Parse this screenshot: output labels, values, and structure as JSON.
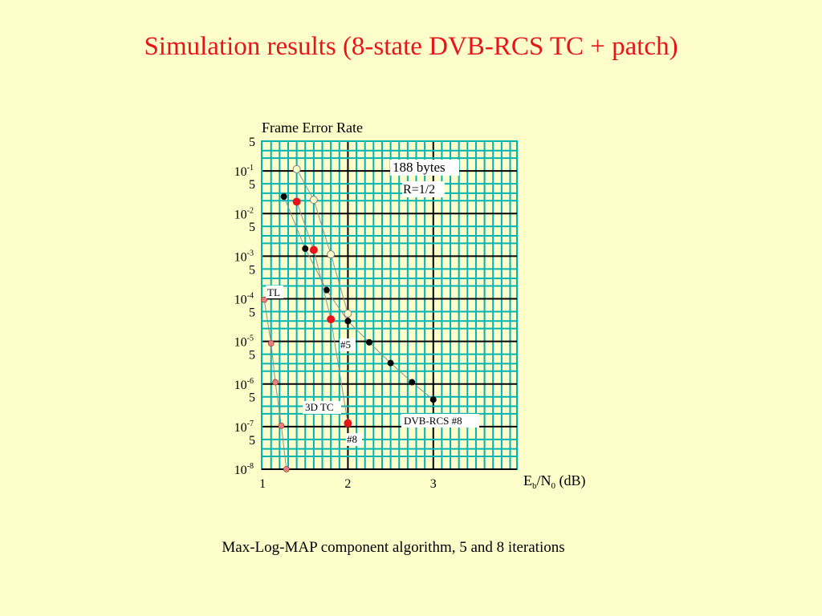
{
  "slide": {
    "title": "Simulation results (8-state DVB-RCS TC + patch)",
    "caption": "Max-Log-MAP component algorithm, 5 and 8 iterations"
  },
  "colors": {
    "background": "#fefecb",
    "title": "#e8141c",
    "grid": "#00b4b4",
    "grid_major": "#000000",
    "red_marker": "#e8141c",
    "pink_marker": "#e88080",
    "series_line": "#909090"
  },
  "chart_data": {
    "type": "scatter",
    "title": "",
    "ylabel": "Frame Error Rate",
    "xlabel_parts": {
      "E": "E",
      "b": "b",
      "slash": "/N",
      "zero": "0",
      "unit": " (dB)"
    },
    "xlim": [
      0.99,
      3.98
    ],
    "ylim": [
      1e-08,
      0.5
    ],
    "yscale": "log",
    "grid": true,
    "x_ticks": [
      {
        "value": 1,
        "label": "1"
      },
      {
        "value": 2,
        "label": "2"
      },
      {
        "value": 3,
        "label": "3"
      }
    ],
    "y_ticks": [
      {
        "value": 0.5,
        "label": "5"
      },
      {
        "value": 0.1,
        "base": "10",
        "exp": "-1"
      },
      {
        "value": 0.05,
        "label": "5"
      },
      {
        "value": 0.01,
        "base": "10",
        "exp": "-2"
      },
      {
        "value": 0.005,
        "label": "5"
      },
      {
        "value": 0.001,
        "base": "10",
        "exp": "-3"
      },
      {
        "value": 0.0005,
        "label": "5"
      },
      {
        "value": 0.0001,
        "base": "10",
        "exp": "-4"
      },
      {
        "value": 5e-05,
        "label": "5"
      },
      {
        "value": 1e-05,
        "base": "10",
        "exp": "-5"
      },
      {
        "value": 5e-06,
        "label": "5"
      },
      {
        "value": 1e-06,
        "base": "10",
        "exp": "-6"
      },
      {
        "value": 5e-07,
        "label": "5"
      },
      {
        "value": 1e-07,
        "base": "10",
        "exp": "-7"
      },
      {
        "value": 5e-08,
        "label": "5"
      },
      {
        "value": 1e-08,
        "base": "10",
        "exp": "-8"
      }
    ],
    "series": [
      {
        "marker": "open",
        "color": "#808080",
        "x": [
          1.4,
          1.6,
          1.8,
          2.0
        ],
        "y": [
          0.11,
          0.021,
          0.0011,
          4.5e-05
        ]
      },
      {
        "marker": "black",
        "color": "#000000",
        "x": [
          1.25,
          1.5,
          1.75,
          2.0,
          2.25,
          2.5,
          2.75,
          3.0
        ],
        "y": [
          0.025,
          0.0015,
          0.00016,
          3e-05,
          9.5e-06,
          3.1e-06,
          1.1e-06,
          4.3e-07
        ]
      },
      {
        "marker": "red",
        "color": "#e8141c",
        "x": [
          1.4,
          1.6,
          1.8,
          2.0
        ],
        "y": [
          0.019,
          0.0014,
          3.3e-05,
          1.2e-07
        ]
      },
      {
        "marker": "pink",
        "color": "#e88080",
        "x": [
          1.02,
          1.1,
          1.15,
          1.22,
          1.28
        ],
        "y": [
          9.5e-05,
          9e-06,
          1.1e-06,
          1.05e-07,
          1e-08
        ]
      }
    ],
    "annotations": {
      "block": "188 bytes",
      "rate": "R=1/2",
      "tl": "TL",
      "it5": "#5",
      "tc3d": "3D TC",
      "it8": "#8",
      "dvb": "DVB-RCS #8"
    }
  }
}
